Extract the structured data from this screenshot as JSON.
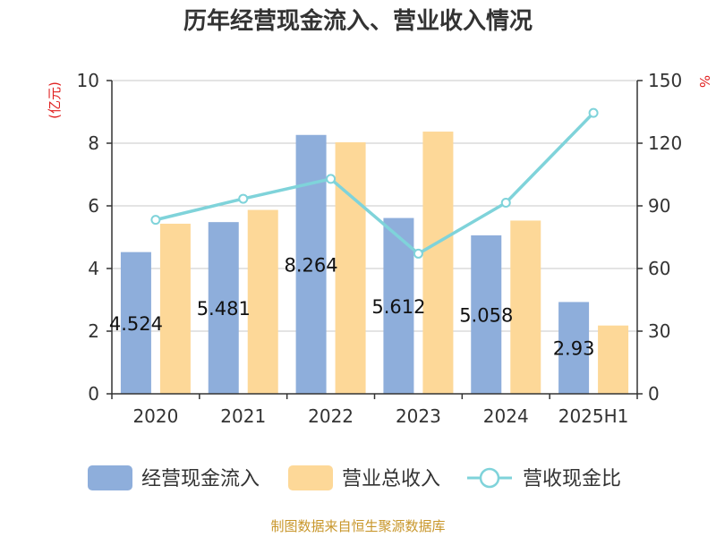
{
  "chart_data": {
    "type": "bar",
    "title": "历年经营现金流入、营业收入情况",
    "categories": [
      "2020",
      "2021",
      "2022",
      "2023",
      "2024",
      "2025H1"
    ],
    "y_left": {
      "unit": "(亿元)",
      "ylim": [
        0,
        10
      ],
      "ticks": [
        "0",
        "2",
        "4",
        "6",
        "8",
        "10"
      ]
    },
    "y_right": {
      "unit": "%",
      "ylim": [
        0,
        150
      ],
      "ticks": [
        "0",
        "30",
        "60",
        "90",
        "120",
        "150"
      ]
    },
    "series": [
      {
        "name": "经营现金流入",
        "type": "bar",
        "axis": "left",
        "color": "#8eaedb",
        "values": [
          4.524,
          5.481,
          8.264,
          5.612,
          5.058,
          2.93
        ],
        "labels": [
          "4.524",
          "5.481",
          "8.264",
          "5.612",
          "5.058",
          "2.93"
        ]
      },
      {
        "name": "营业总收入",
        "type": "bar",
        "axis": "left",
        "color": "#fdd898",
        "values": [
          5.43,
          5.87,
          8.03,
          8.37,
          5.53,
          2.18
        ]
      },
      {
        "name": "营收现金比",
        "type": "line",
        "axis": "right",
        "color": "#7fd3da",
        "values": [
          83.3,
          93.4,
          102.9,
          67.1,
          91.5,
          134.5
        ]
      }
    ],
    "grid": true,
    "legend": "bottom"
  },
  "footer": "制图数据来自恒生聚源数据库"
}
